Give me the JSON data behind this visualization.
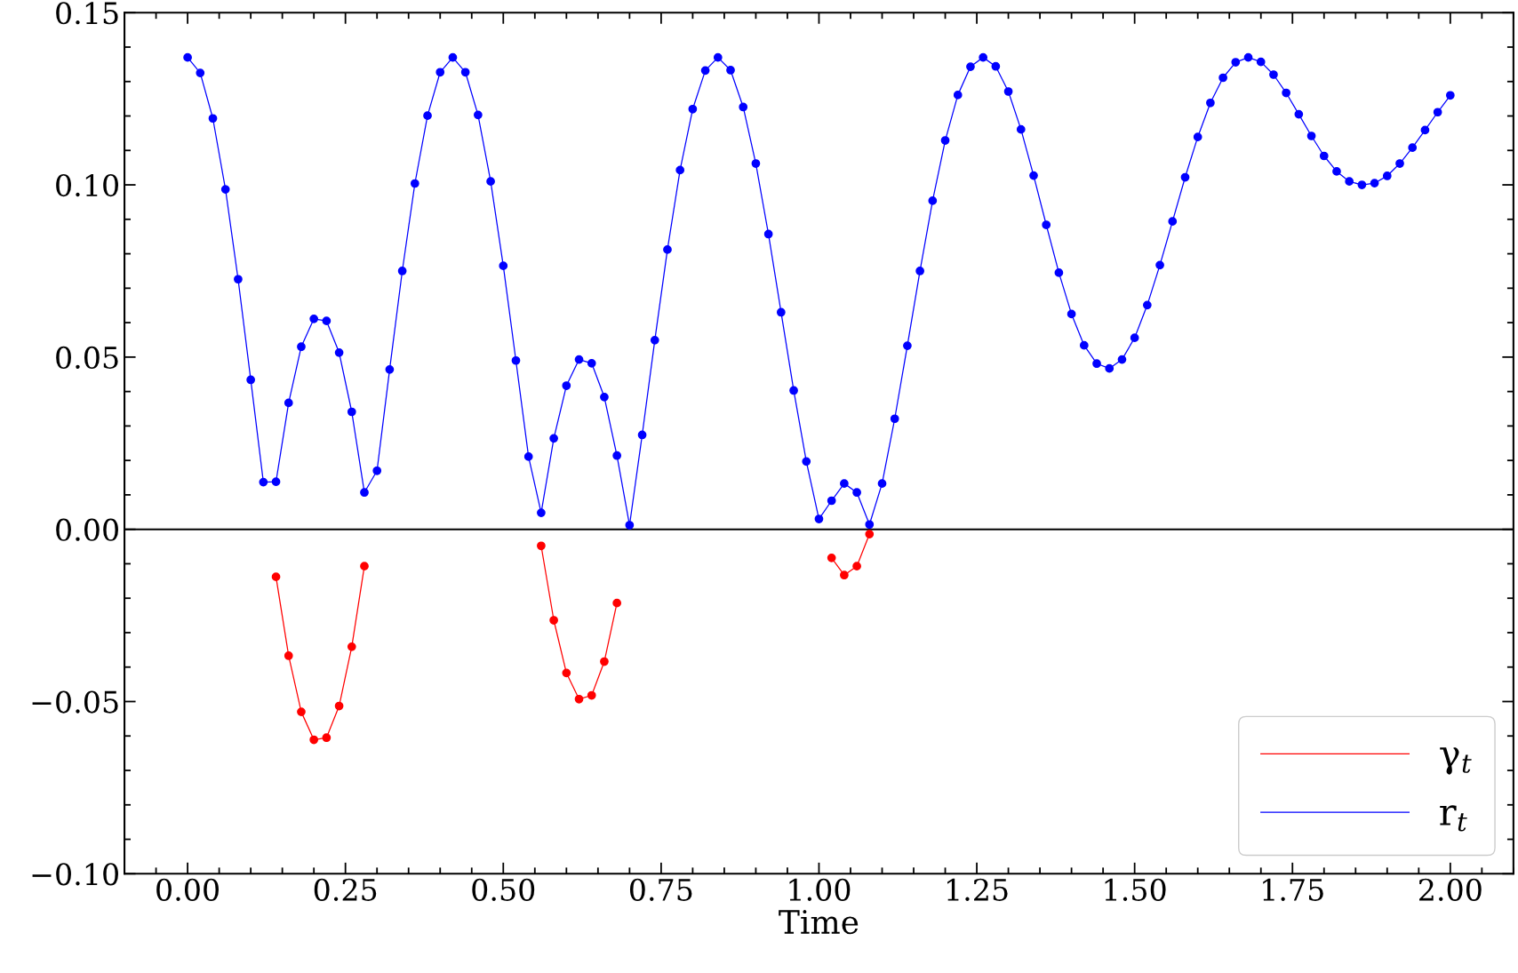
{
  "chart_data": {
    "type": "line",
    "xlabel": "Time",
    "x": [
      0,
      0.02,
      0.04,
      0.06,
      0.08,
      0.1,
      0.12,
      0.14,
      0.16,
      0.18,
      0.2,
      0.22,
      0.24,
      0.26,
      0.28,
      0.3,
      0.32,
      0.34,
      0.36,
      0.38,
      0.4,
      0.42,
      0.44,
      0.46,
      0.48,
      0.5,
      0.52,
      0.54,
      0.56,
      0.58,
      0.6,
      0.62,
      0.64,
      0.66,
      0.68,
      0.7,
      0.72,
      0.74,
      0.76,
      0.78,
      0.8,
      0.82,
      0.84,
      0.86,
      0.88,
      0.9,
      0.92,
      0.94,
      0.96,
      0.98,
      1.0,
      1.02,
      1.04,
      1.06,
      1.08,
      1.1,
      1.12,
      1.14,
      1.16,
      1.18,
      1.2,
      1.22,
      1.24,
      1.26,
      1.28,
      1.3,
      1.32,
      1.34,
      1.36,
      1.38,
      1.4,
      1.42,
      1.44,
      1.46,
      1.48,
      1.5,
      1.52,
      1.54,
      1.56,
      1.58,
      1.6,
      1.62,
      1.64,
      1.66,
      1.68,
      1.7,
      1.72,
      1.74,
      1.76,
      1.78,
      1.8,
      1.82,
      1.84,
      1.86,
      1.88,
      1.9,
      1.92,
      1.94,
      1.96,
      1.98,
      2.0
    ],
    "series": [
      {
        "name": "γ$_{t}$",
        "color": "#ff0000",
        "values": [
          null,
          null,
          null,
          null,
          null,
          null,
          null,
          -0.0138,
          -0.0367,
          -0.053,
          -0.0611,
          -0.0605,
          -0.0513,
          -0.0341,
          -0.0107,
          null,
          null,
          null,
          null,
          null,
          null,
          null,
          null,
          null,
          null,
          null,
          null,
          null,
          -0.0048,
          -0.0264,
          -0.0417,
          -0.0493,
          -0.0482,
          -0.0384,
          -0.0214,
          null,
          null,
          null,
          null,
          null,
          null,
          null,
          null,
          null,
          null,
          null,
          null,
          null,
          null,
          null,
          null,
          -0.0083,
          -0.0133,
          -0.0107,
          -0.0014,
          null,
          null,
          null,
          null,
          null,
          null,
          null,
          null,
          null,
          null,
          null,
          null,
          null,
          null,
          null,
          null,
          null,
          null,
          null,
          null,
          null,
          null,
          null,
          null,
          null,
          null,
          null,
          null,
          null,
          null,
          null,
          null,
          null,
          null,
          null,
          null,
          null,
          null,
          null,
          null,
          null,
          null,
          null,
          null,
          null,
          null
        ]
      },
      {
        "name": "r$_{t}$",
        "color": "#0000ff",
        "values": [
          0.137,
          0.1325,
          0.1193,
          0.0987,
          0.0726,
          0.0434,
          0.0137,
          0.0138,
          0.0367,
          0.053,
          0.0611,
          0.0605,
          0.0513,
          0.0341,
          0.0107,
          0.017,
          0.0464,
          0.075,
          0.1004,
          0.1201,
          0.1327,
          0.137,
          0.1327,
          0.1203,
          0.101,
          0.0765,
          0.049,
          0.0211,
          0.0048,
          0.0264,
          0.0417,
          0.0493,
          0.0482,
          0.0384,
          0.0214,
          0.0012,
          0.0274,
          0.0549,
          0.0812,
          0.1043,
          0.122,
          0.1332,
          0.137,
          0.1333,
          0.1226,
          0.1062,
          0.0857,
          0.063,
          0.0403,
          0.0197,
          0.003,
          0.0083,
          0.0133,
          0.0107,
          0.0014,
          0.0133,
          0.0321,
          0.0533,
          0.075,
          0.0954,
          0.1129,
          0.1261,
          0.1343,
          0.137,
          0.1344,
          0.1271,
          0.1161,
          0.1027,
          0.0884,
          0.0745,
          0.0625,
          0.0534,
          0.0481,
          0.0467,
          0.0493,
          0.0556,
          0.0651,
          0.0767,
          0.0894,
          0.1022,
          0.1139,
          0.1238,
          0.1311,
          0.1356,
          0.137,
          0.1357,
          0.132,
          0.1267,
          0.1205,
          0.1142,
          0.1084,
          0.1039,
          0.101,
          0.1,
          0.1005,
          0.1026,
          0.1062,
          0.1108,
          0.1159,
          0.1211,
          0.126
        ]
      }
    ],
    "xlim": [
      -0.1,
      2.1
    ],
    "ylim": [
      -0.1,
      0.15
    ],
    "xticks": [
      {
        "value": 0,
        "label": "0.00"
      },
      {
        "value": 0.25,
        "label": "0.25"
      },
      {
        "value": 0.5,
        "label": "0.50"
      },
      {
        "value": 0.75,
        "label": "0.75"
      },
      {
        "value": 1,
        "label": "1.00"
      },
      {
        "value": 1.25,
        "label": "1.25"
      },
      {
        "value": 1.5,
        "label": "1.50"
      },
      {
        "value": 1.75,
        "label": "1.75"
      },
      {
        "value": 2,
        "label": "2.00"
      }
    ],
    "yticks": [
      {
        "value": -0.1,
        "label": "−0.10"
      },
      {
        "value": -0.05,
        "label": "−0.05"
      },
      {
        "value": 0,
        "label": "0.00"
      },
      {
        "value": 0.05,
        "label": "0.05"
      },
      {
        "value": 0.1,
        "label": "0.10"
      },
      {
        "value": 0.15,
        "label": "0.15"
      }
    ],
    "ref_lines": [
      {
        "axis": "y",
        "value": 0,
        "color": "#000000",
        "line_style": "solid"
      }
    ],
    "marker": "circle",
    "line_style": "solid",
    "grid": false,
    "legend": "bottom right"
  }
}
